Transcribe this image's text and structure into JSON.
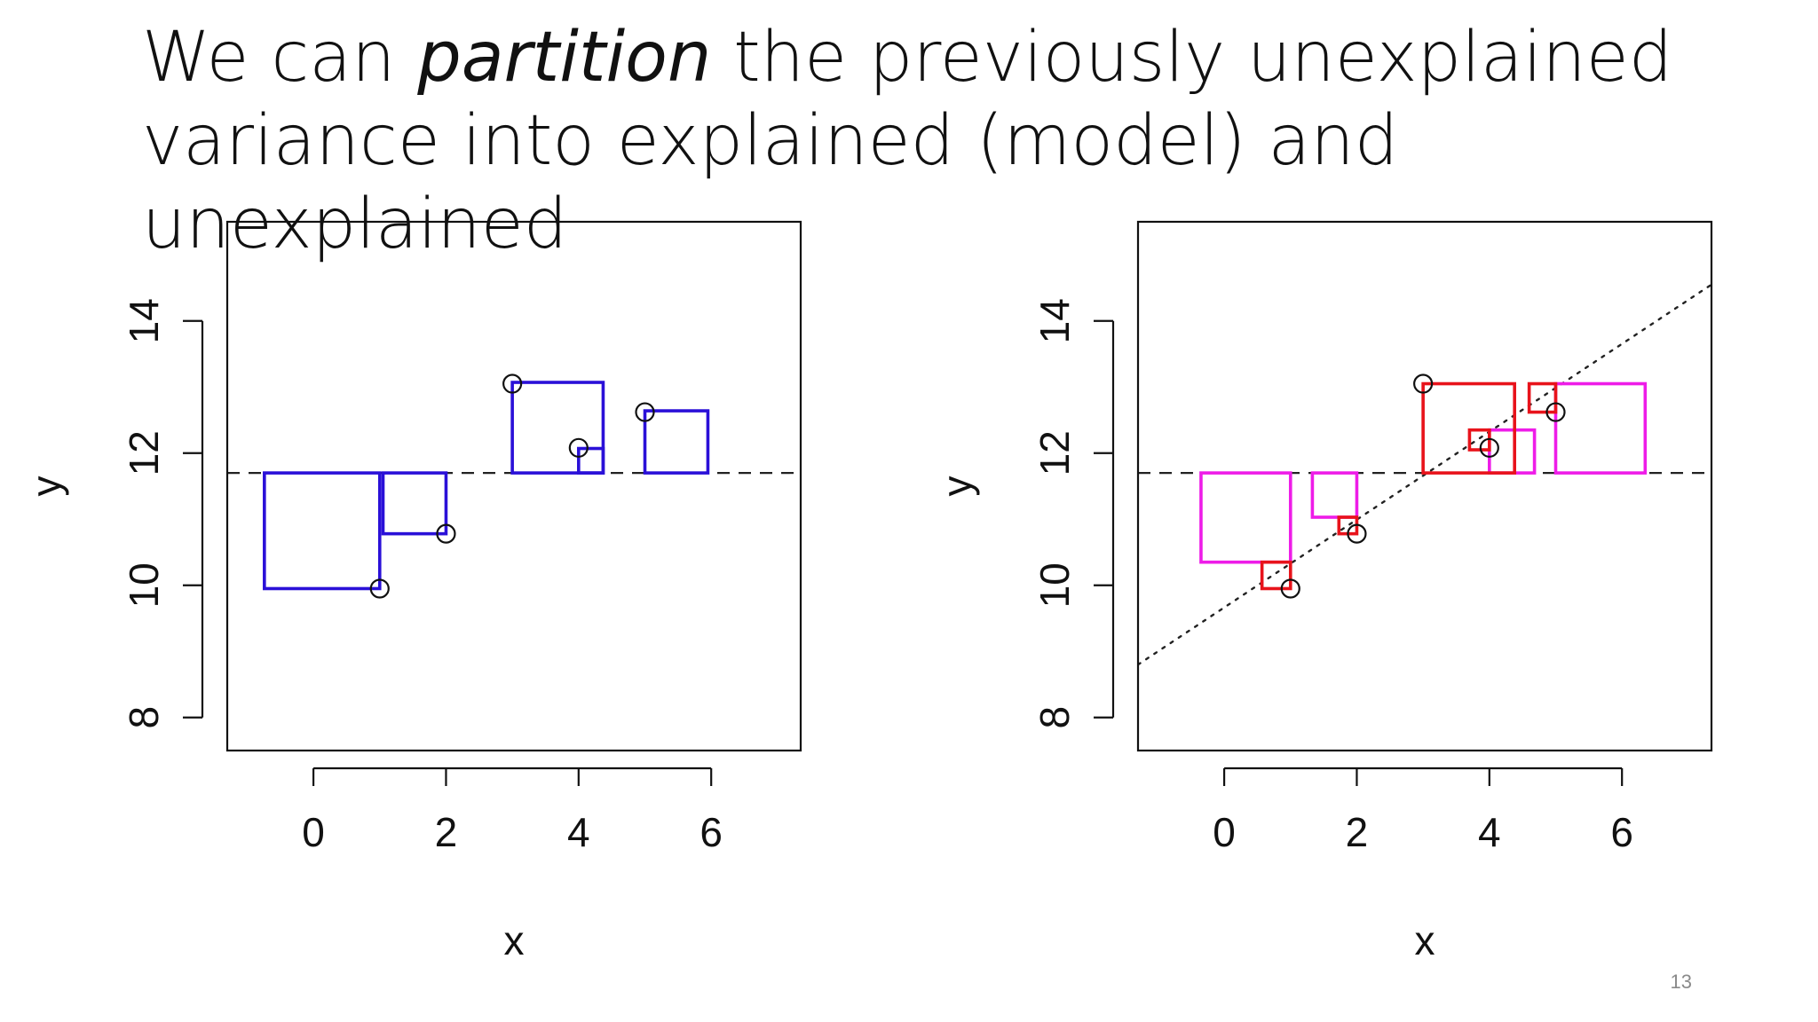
{
  "slide": {
    "title_part1": "We can ",
    "title_em": "partition",
    "title_part2": " the previously unexplained variance into explained (model) and unexplained",
    "page_number": "13"
  },
  "colors": {
    "total_squares": "#2a10d8",
    "residual_squares": "#e8131b",
    "explained_squares": "#ee1ce8",
    "axes": "#111111"
  },
  "chart_data": [
    {
      "type": "scatter",
      "title": "",
      "xlabel": "x",
      "ylabel": "y",
      "xlim": [
        -1.3,
        7.35
      ],
      "ylim": [
        7.5,
        15.5
      ],
      "x_ticks": [
        0,
        2,
        4,
        6
      ],
      "y_ticks": [
        8,
        10,
        12,
        14
      ],
      "grid": false,
      "points": [
        {
          "x": 1,
          "y": 9.95
        },
        {
          "x": 2,
          "y": 10.78
        },
        {
          "x": 3,
          "y": 13.05
        },
        {
          "x": 4,
          "y": 12.08
        },
        {
          "x": 5,
          "y": 12.62
        }
      ],
      "mean_line": {
        "y": 11.7,
        "style": "dashed"
      },
      "squares": [
        {
          "x0": -0.74,
          "x1": 1,
          "y0": 9.95,
          "y1": 11.7,
          "kind": "total"
        },
        {
          "x0": 1.05,
          "x1": 2,
          "y0": 10.78,
          "y1": 11.7,
          "kind": "total"
        },
        {
          "x0": 3,
          "x1": 4.37,
          "y0": 11.7,
          "y1": 13.07,
          "kind": "total"
        },
        {
          "x0": 4,
          "x1": 4.37,
          "y0": 11.7,
          "y1": 12.07,
          "kind": "total"
        },
        {
          "x0": 5,
          "x1": 5.95,
          "y0": 11.7,
          "y1": 12.64,
          "kind": "total"
        }
      ]
    },
    {
      "type": "scatter",
      "title": "",
      "xlabel": "x",
      "ylabel": "y",
      "xlim": [
        -1.3,
        7.35
      ],
      "ylim": [
        7.5,
        15.5
      ],
      "x_ticks": [
        0,
        2,
        4,
        6
      ],
      "y_ticks": [
        8,
        10,
        12,
        14
      ],
      "grid": false,
      "points": [
        {
          "x": 1,
          "y": 9.95
        },
        {
          "x": 2,
          "y": 10.78
        },
        {
          "x": 3,
          "y": 13.05
        },
        {
          "x": 4,
          "y": 12.08
        },
        {
          "x": 5,
          "y": 12.62
        }
      ],
      "mean_line": {
        "y": 11.7,
        "style": "dashed"
      },
      "regression_line": {
        "x0": -1.3,
        "y0": 8.8,
        "x1": 7.35,
        "y1": 14.55,
        "style": "dotted"
      },
      "squares": [
        {
          "x0": -0.35,
          "x1": 1.0,
          "y0": 10.35,
          "y1": 11.7,
          "kind": "explained"
        },
        {
          "x0": 1.33,
          "x1": 2.0,
          "y0": 11.03,
          "y1": 11.7,
          "kind": "explained"
        },
        {
          "x0": 4.0,
          "x1": 4.68,
          "y0": 11.7,
          "y1": 12.35,
          "kind": "explained"
        },
        {
          "x0": 5.0,
          "x1": 6.35,
          "y0": 11.7,
          "y1": 13.05,
          "kind": "explained"
        },
        {
          "x0": 0.57,
          "x1": 1.0,
          "y0": 9.95,
          "y1": 10.35,
          "kind": "residual"
        },
        {
          "x0": 1.73,
          "x1": 2.0,
          "y0": 10.78,
          "y1": 11.03,
          "kind": "residual"
        },
        {
          "x0": 3.0,
          "x1": 4.38,
          "y0": 11.7,
          "y1": 13.05,
          "kind": "residual"
        },
        {
          "x0": 3.7,
          "x1": 4.0,
          "y0": 12.05,
          "y1": 12.35,
          "kind": "residual"
        },
        {
          "x0": 4.6,
          "x1": 5.0,
          "y0": 12.62,
          "y1": 13.05,
          "kind": "residual"
        }
      ]
    }
  ]
}
